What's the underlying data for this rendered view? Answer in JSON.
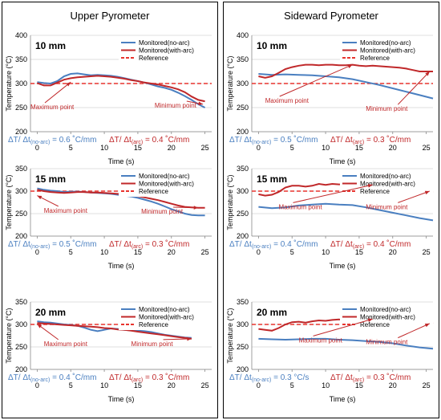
{
  "figure": {
    "left_title": "Upper Pyrometer",
    "right_title": "Sideward Pyrometer"
  },
  "legend": {
    "no_arc": "Monitored(no-arc)",
    "with_arc": "Monitored(with-arc)",
    "reference": "Reference"
  },
  "colors": {
    "no_arc": "#4a7fc0",
    "with_arc": "#c0282a",
    "reference": "#e8342e",
    "annotation": "#c0282a",
    "rate_no_arc": "#4a7fc0"
  },
  "chart_data": [
    {
      "id": "upper-10",
      "type": "line",
      "panel_label": "10 mm",
      "xlabel": "Time (s)",
      "ylabel": "Temperature (°C)",
      "xlim": [
        -1,
        26
      ],
      "ylim": [
        200,
        400
      ],
      "xticks": [
        "0",
        "5",
        "10",
        "15",
        "20",
        "25"
      ],
      "yticks": [
        "200",
        "250",
        "300",
        "350",
        "400"
      ],
      "reference": 300,
      "series": [
        {
          "name": "Monitored(no-arc)",
          "x": [
            0,
            1,
            2,
            3,
            4,
            5,
            6,
            7,
            8,
            9,
            10,
            11,
            12,
            13,
            14,
            15,
            16,
            17,
            18,
            19,
            20,
            21,
            22,
            23,
            24,
            25
          ],
          "y": [
            303,
            301,
            300,
            305,
            315,
            320,
            321,
            319,
            317,
            318,
            317,
            316,
            314,
            311,
            308,
            305,
            302,
            298,
            294,
            291,
            287,
            281,
            274,
            266,
            257,
            250
          ]
        },
        {
          "name": "Monitored(with-arc)",
          "x": [
            0,
            1,
            2,
            3,
            4,
            5,
            6,
            7,
            8,
            9,
            10,
            11,
            12,
            13,
            14,
            15,
            16,
            17,
            18,
            19,
            20,
            21,
            22,
            23,
            24,
            25
          ],
          "y": [
            301,
            296,
            296,
            302,
            308,
            311,
            313,
            314,
            315,
            316,
            315,
            314,
            312,
            310,
            307,
            305,
            302,
            300,
            298,
            295,
            292,
            288,
            282,
            273,
            266,
            263
          ]
        }
      ],
      "annotations": [
        "Maximum point",
        "Minimum point"
      ],
      "rate_no_arc": "ΔT/ Δt(no-arc) = 0.6 ˚C/mm",
      "rate_with_arc": "ΔT/ Δt(arc) = 0.4 ˚C/mm"
    },
    {
      "id": "upper-15",
      "type": "line",
      "panel_label": "15 mm",
      "xlabel": "Time (s)",
      "ylabel": "Temperature (°C)",
      "xlim": [
        -1,
        26
      ],
      "ylim": [
        200,
        350
      ],
      "xticks": [
        "0",
        "5",
        "10",
        "15",
        "20",
        "25"
      ],
      "yticks": [
        "200",
        "250",
        "300",
        "350"
      ],
      "reference": 300,
      "series": [
        {
          "name": "Monitored(no-arc)",
          "x": [
            0,
            1,
            2,
            3,
            4,
            5,
            6,
            7,
            8,
            9,
            10,
            11,
            12,
            13,
            14,
            15,
            16,
            17,
            18,
            19,
            20,
            21,
            22,
            23,
            24,
            25
          ],
          "y": [
            306,
            303,
            301,
            300,
            298,
            299,
            299,
            298,
            297,
            296,
            295,
            294,
            292,
            290,
            288,
            285,
            281,
            277,
            272,
            266,
            260,
            255,
            250,
            247,
            246,
            246
          ]
        },
        {
          "name": "Monitored(with-arc)",
          "x": [
            0,
            1,
            2,
            3,
            4,
            5,
            6,
            7,
            8,
            9,
            10,
            11,
            12,
            13,
            14,
            15,
            16,
            17,
            18,
            19,
            20,
            21,
            22,
            23,
            24,
            25
          ],
          "y": [
            303,
            300,
            298,
            297,
            296,
            297,
            298,
            298,
            297,
            297,
            296,
            295,
            294,
            293,
            291,
            289,
            286,
            283,
            280,
            276,
            272,
            268,
            265,
            264,
            263,
            263
          ]
        }
      ],
      "annotations": [
        "Maximum point",
        "Minimum point"
      ],
      "rate_no_arc": "ΔT/ Δt(no-arc) = 0.5 ˚C/mm",
      "rate_with_arc": "ΔT/ Δt(arc) = 0.3 ˚C/mm"
    },
    {
      "id": "upper-20",
      "type": "line",
      "panel_label": "20 mm",
      "xlabel": "Time (s)",
      "ylabel": "Temperature (°C)",
      "xlim": [
        -1,
        26
      ],
      "ylim": [
        200,
        350
      ],
      "xticks": [
        "0",
        "5",
        "10",
        "15",
        "20",
        "25"
      ],
      "yticks": [
        "200",
        "250",
        "300",
        "350"
      ],
      "reference": 300,
      "series": [
        {
          "name": "Monitored(no-arc)",
          "x": [
            0,
            1,
            2,
            3,
            4,
            5,
            6,
            7,
            8,
            9,
            10,
            11,
            12,
            13,
            14,
            15,
            16,
            17,
            18,
            19,
            20,
            21,
            22,
            23
          ],
          "y": [
            307,
            305,
            304,
            302,
            300,
            299,
            297,
            293,
            288,
            285,
            288,
            291,
            290,
            288,
            287,
            286,
            285,
            283,
            280,
            277,
            275,
            273,
            271,
            270
          ]
        },
        {
          "name": "Monitored(with-arc)",
          "x": [
            0,
            1,
            2,
            3,
            4,
            5,
            6,
            7,
            8,
            9,
            10,
            11,
            12,
            13,
            14,
            15,
            16,
            17,
            18,
            19,
            20,
            21,
            22,
            23
          ],
          "y": [
            303,
            302,
            301,
            300,
            299,
            298,
            297,
            296,
            295,
            294,
            292,
            291,
            289,
            288,
            286,
            284,
            282,
            280,
            278,
            276,
            274,
            272,
            270,
            268
          ]
        }
      ],
      "annotations": [
        "Maximum point",
        "Minimum point"
      ],
      "rate_no_arc": "ΔT/ Δt(no-arc) = 0.4 ˚C/mm",
      "rate_with_arc": "ΔT/ Δt(arc) = 0.3 ˚C/mm"
    },
    {
      "id": "side-10",
      "type": "line",
      "panel_label": "10 mm",
      "xlabel": "Time (s)",
      "ylabel": "Temperature (°C)",
      "xlim": [
        -1,
        26
      ],
      "ylim": [
        200,
        400
      ],
      "xticks": [
        "0",
        "5",
        "10",
        "15",
        "20",
        "25"
      ],
      "yticks": [
        "200",
        "250",
        "300",
        "350",
        "400"
      ],
      "reference": 300,
      "series": [
        {
          "name": "Monitored(no-arc)",
          "x": [
            0,
            2,
            4,
            6,
            8,
            10,
            12,
            14,
            16,
            18,
            20,
            22,
            24,
            26
          ],
          "y": [
            320,
            318,
            319,
            318,
            317,
            315,
            313,
            309,
            303,
            297,
            290,
            283,
            276,
            269
          ]
        },
        {
          "name": "Monitored(with-arc)",
          "x": [
            0,
            1,
            2,
            3,
            4,
            5,
            6,
            7,
            8,
            9,
            10,
            11,
            12,
            13,
            14,
            15,
            16,
            17,
            18,
            19,
            20,
            21,
            22,
            23,
            24,
            25,
            26
          ],
          "y": [
            315,
            312,
            315,
            322,
            330,
            334,
            337,
            339,
            339,
            338,
            339,
            339,
            338,
            338,
            339,
            337,
            336,
            337,
            336,
            335,
            334,
            333,
            331,
            328,
            325,
            325,
            325
          ]
        }
      ],
      "annotations": [
        "Maximum point",
        "Minimum point"
      ],
      "rate_no_arc": "ΔT/ Δt(no-arc) = 0.5 ˚C/mm",
      "rate_with_arc": "ΔT/ Δt(arc) = 0.3 ˚C/mm"
    },
    {
      "id": "side-15",
      "type": "line",
      "panel_label": "15 mm",
      "xlabel": "Time (s)",
      "ylabel": "Temperature (°C)",
      "xlim": [
        -1,
        26
      ],
      "ylim": [
        200,
        350
      ],
      "xticks": [
        "0",
        "5",
        "10",
        "15",
        "20",
        "25"
      ],
      "yticks": [
        "200",
        "250",
        "300",
        "350"
      ],
      "reference": 300,
      "series": [
        {
          "name": "Monitored(no-arc)",
          "x": [
            0,
            2,
            4,
            6,
            8,
            10,
            12,
            14,
            16,
            18,
            20,
            22,
            24,
            26
          ],
          "y": [
            265,
            262,
            264,
            268,
            270,
            272,
            270,
            269,
            264,
            258,
            252,
            246,
            240,
            235
          ]
        },
        {
          "name": "Monitored(with-arc)",
          "x": [
            0,
            1,
            2,
            3,
            4,
            5,
            6,
            7,
            8,
            9,
            10,
            11,
            12,
            13,
            14,
            15,
            16,
            17,
            18,
            19,
            20,
            21,
            22,
            23,
            24,
            25,
            26
          ],
          "y": [
            293,
            290,
            292,
            298,
            308,
            312,
            312,
            310,
            312,
            316,
            314,
            316,
            315,
            315,
            316,
            314,
            313,
            311,
            311,
            309,
            307,
            305,
            303,
            301,
            300,
            299,
            297
          ]
        }
      ],
      "annotations": [
        "Maximum point",
        "Minimum point"
      ],
      "rate_no_arc": "ΔT/ Δt(no-arc) = 0.4 ˚C/mm",
      "rate_with_arc": "ΔT/ Δt(arc) = 0.4 ˚C/mm"
    },
    {
      "id": "side-20",
      "type": "line",
      "panel_label": "20 mm",
      "xlabel": "Time (s)",
      "ylabel": "Temperature (°C)",
      "xlim": [
        -1,
        26
      ],
      "ylim": [
        200,
        350
      ],
      "xticks": [
        "0",
        "5",
        "10",
        "15",
        "20",
        "25"
      ],
      "yticks": [
        "200",
        "250",
        "300",
        "350"
      ],
      "reference": 300,
      "series": [
        {
          "name": "Monitored(no-arc)",
          "x": [
            0,
            2,
            4,
            6,
            8,
            10,
            12,
            14,
            16,
            18,
            20,
            22,
            24,
            26
          ],
          "y": [
            268,
            267,
            266,
            267,
            268,
            268,
            266,
            265,
            263,
            261,
            258,
            253,
            249,
            246
          ]
        },
        {
          "name": "Monitored(with-arc)",
          "x": [
            0,
            1,
            2,
            3,
            4,
            5,
            6,
            7,
            8,
            9,
            10,
            11,
            12,
            13,
            14,
            15,
            16,
            17,
            18,
            19,
            20,
            21,
            22,
            23,
            24,
            25,
            26
          ],
          "y": [
            290,
            288,
            286,
            292,
            300,
            305,
            306,
            304,
            307,
            309,
            308,
            310,
            311,
            309,
            311,
            310,
            309,
            312,
            311,
            309,
            310,
            308,
            306,
            305,
            304,
            305,
            302
          ]
        }
      ],
      "annotations": [
        "Maximum point",
        "Minimum point"
      ],
      "rate_no_arc": "ΔT/ Δt(no-arc) = 0.3 °C/s",
      "rate_with_arc": "ΔT/ Δt(arc) = 0.3 ˚C/mm"
    }
  ]
}
